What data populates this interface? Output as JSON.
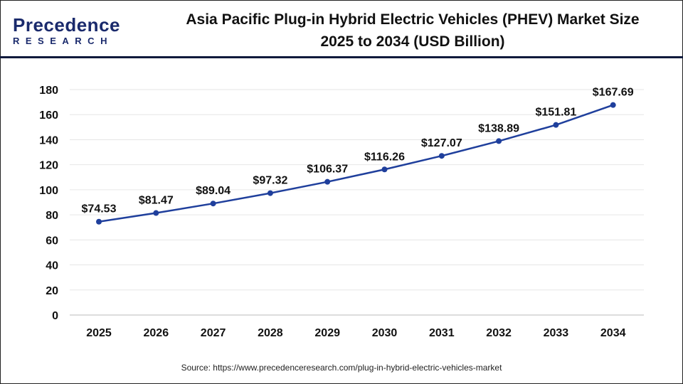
{
  "logo": {
    "line1": "Precedence",
    "line2": "RESEARCH"
  },
  "title_line1": "Asia Pacific Plug-in Hybrid Electric Vehicles (PHEV) Market Size",
  "title_line2": "2025 to 2034 (USD Billion)",
  "source": "Source: https://www.precedenceresearch.com/plug-in-hybrid-electric-vehicles-market",
  "chart_data": {
    "type": "line",
    "title": "Asia Pacific Plug-in Hybrid Electric Vehicles (PHEV) Market Size 2025 to 2034 (USD Billion)",
    "categories": [
      "2025",
      "2026",
      "2027",
      "2028",
      "2029",
      "2030",
      "2031",
      "2032",
      "2033",
      "2034"
    ],
    "values": [
      74.53,
      81.47,
      89.04,
      97.32,
      106.37,
      116.26,
      127.07,
      138.89,
      151.81,
      167.69
    ],
    "data_labels": [
      "$74.53",
      "$81.47",
      "$89.04",
      "$97.32",
      "$106.37",
      "$116.26",
      "$127.07",
      "$138.89",
      "$151.81",
      "$167.69"
    ],
    "ylim": [
      0,
      180
    ],
    "yticks": [
      0,
      20,
      40,
      60,
      80,
      100,
      120,
      140,
      160,
      180
    ],
    "grid": true,
    "line_color": "#1f3f9c"
  }
}
